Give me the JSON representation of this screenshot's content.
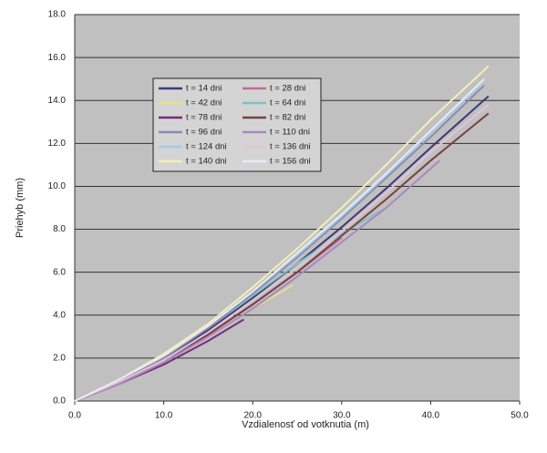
{
  "chart_data": {
    "type": "line",
    "xlabel": "Vzdialenosť od votknutia (m)",
    "ylabel": "Priehyb (mm)",
    "xlim": [
      0,
      50
    ],
    "xticks": [
      {
        "value": 0,
        "label": "0.0"
      },
      {
        "value": 10,
        "label": "10.0"
      },
      {
        "value": 20,
        "label": "20.0"
      },
      {
        "value": 30,
        "label": "30.0"
      },
      {
        "value": 40,
        "label": "40.0"
      },
      {
        "value": 50,
        "label": "50.0"
      }
    ],
    "ylim": [
      0,
      18
    ],
    "yticks": [
      {
        "value": 0,
        "label": "0.0"
      },
      {
        "value": 2,
        "label": "2.0"
      },
      {
        "value": 4,
        "label": "4.0"
      },
      {
        "value": 6,
        "label": "6.0"
      },
      {
        "value": 8,
        "label": "8.0"
      },
      {
        "value": 10,
        "label": "10.0"
      },
      {
        "value": 12,
        "label": "12.0"
      },
      {
        "value": 14,
        "label": "14.0"
      },
      {
        "value": 16,
        "label": "16.0"
      },
      {
        "value": 18,
        "label": "18.0"
      }
    ],
    "grid": true,
    "legend": "upper-left",
    "series": [
      {
        "name": "t = 14 dni",
        "color": "#3a3a78",
        "x": [
          0,
          5,
          10,
          15,
          20,
          25,
          30,
          35,
          40,
          46.5
        ],
        "values": [
          0,
          0.9,
          2.0,
          3.3,
          4.8,
          6.4,
          8.1,
          9.9,
          11.8,
          14.2
        ]
      },
      {
        "name": "t = 28 dni",
        "color": "#c46a9a",
        "x": [
          0,
          5,
          10,
          15,
          20,
          25,
          30
        ],
        "values": [
          0,
          0.9,
          1.9,
          3.1,
          4.5,
          6.0,
          7.6
        ]
      },
      {
        "name": "t = 42 dni",
        "color": "#e4e088",
        "x": [
          0,
          5,
          10,
          15,
          20,
          24.5
        ],
        "values": [
          0,
          0.9,
          1.9,
          3.0,
          4.3,
          5.4
        ]
      },
      {
        "name": "t = 64 dni",
        "color": "#7cc4c0",
        "x": [
          0,
          5,
          10,
          15,
          20,
          25,
          30,
          35
        ],
        "values": [
          0,
          1.0,
          2.1,
          3.4,
          4.9,
          6.4,
          7.8,
          9.0
        ]
      },
      {
        "name": "t = 78 dni",
        "color": "#7a2c7a",
        "x": [
          0,
          5,
          10,
          15,
          19
        ],
        "values": [
          0,
          0.8,
          1.7,
          2.8,
          3.8
        ]
      },
      {
        "name": "t = 82 dni",
        "color": "#7a4040",
        "x": [
          0,
          5,
          10,
          15,
          20,
          25,
          30,
          35,
          40,
          46.5
        ],
        "values": [
          0,
          0.8,
          1.8,
          3.1,
          4.5,
          6.0,
          7.7,
          9.4,
          11.2,
          13.4
        ]
      },
      {
        "name": "t = 96 dni",
        "color": "#8c8cae",
        "x": [
          0,
          5,
          10,
          15,
          20,
          25,
          30,
          35,
          40,
          46
        ],
        "values": [
          0,
          0.9,
          2.0,
          3.4,
          5.0,
          6.7,
          8.5,
          10.4,
          12.3,
          14.7
        ]
      },
      {
        "name": "t = 110 dni",
        "color": "#a888c0",
        "x": [
          0,
          5,
          10,
          15,
          20,
          25,
          30,
          35,
          41
        ],
        "values": [
          0,
          0.8,
          1.8,
          3.0,
          4.3,
          5.8,
          7.4,
          9.0,
          11.2
        ]
      },
      {
        "name": "t = 124 dni",
        "color": "#a4cce4",
        "x": [
          0,
          5,
          10,
          15,
          20,
          25,
          30,
          35,
          40,
          46
        ],
        "values": [
          0,
          1.0,
          2.1,
          3.5,
          5.1,
          6.8,
          8.6,
          10.5,
          12.5,
          14.9
        ]
      },
      {
        "name": "t = 136 dni",
        "color": "#e2c4d4",
        "x": [
          0,
          5,
          10,
          15,
          20,
          25,
          30,
          35,
          40,
          46.5
        ],
        "values": [
          0,
          0.9,
          1.9,
          3.2,
          4.7,
          6.2,
          7.9,
          9.7,
          11.6,
          13.8
        ]
      },
      {
        "name": "t = 140 dni",
        "color": "#f2f0b4",
        "x": [
          0,
          5,
          10,
          15,
          20,
          25,
          30,
          35,
          40,
          46.5
        ],
        "values": [
          0,
          1.0,
          2.2,
          3.6,
          5.3,
          7.1,
          9.0,
          11.0,
          13.1,
          15.6
        ]
      },
      {
        "name": "t = 156 dni",
        "color": "#eaeaf2",
        "x": [
          0,
          5,
          10,
          15,
          20,
          25,
          30,
          35,
          40,
          46
        ],
        "values": [
          0,
          1.0,
          2.1,
          3.5,
          5.1,
          6.9,
          8.7,
          10.6,
          12.6,
          15.0
        ]
      }
    ]
  }
}
